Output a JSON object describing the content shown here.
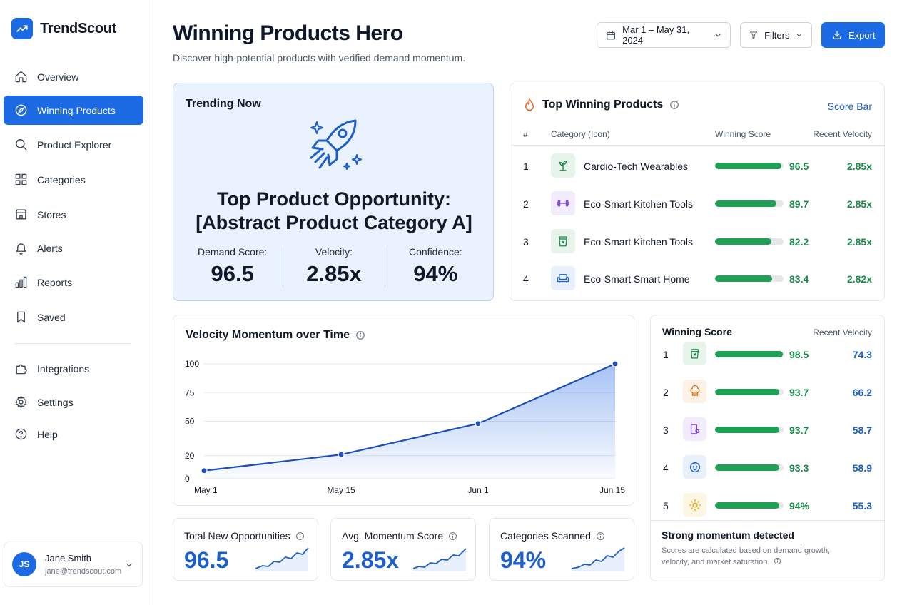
{
  "app": {
    "name": "TrendScout"
  },
  "nav": {
    "items": [
      {
        "label": "Overview",
        "icon": "home-icon"
      },
      {
        "label": "Winning Products",
        "icon": "compass-icon",
        "active": true
      },
      {
        "label": "Product Explorer",
        "icon": "search-icon"
      },
      {
        "label": "Categories",
        "icon": "grid-icon"
      },
      {
        "label": "Stores",
        "icon": "store-icon"
      },
      {
        "label": "Alerts",
        "icon": "bell-icon"
      },
      {
        "label": "Reports",
        "icon": "bar-chart-icon"
      },
      {
        "label": "Saved",
        "icon": "bookmark-icon"
      },
      {
        "label": "Integrations",
        "icon": "puzzle-icon"
      },
      {
        "label": "Settings",
        "icon": "gear-icon"
      },
      {
        "label": "Help",
        "icon": "help-icon"
      }
    ]
  },
  "user": {
    "initials": "JS",
    "name": "Jane Smith",
    "email": "jane@trendscout.com"
  },
  "header": {
    "title": "Winning Products Hero",
    "subtitle": "Discover high-potential products with verified demand momentum.",
    "date_range": "Mar 1 – May 31, 2024",
    "filters_label": "Filters",
    "export_label": "Export"
  },
  "hero": {
    "label": "Trending Now",
    "title_line1": "Top Product Opportunity:",
    "title_line2": "[Abstract Product Category A]",
    "stats": [
      {
        "label": "Demand Score:",
        "value": "96.5"
      },
      {
        "label": "Velocity:",
        "value": "2.85x"
      },
      {
        "label": "Confidence:",
        "value": "94%"
      }
    ]
  },
  "top_products": {
    "title": "Top Winning Products",
    "link": "Score Bar",
    "columns": [
      "#",
      "Category (Icon)",
      "Winning Score",
      "Recent Velocity"
    ],
    "rows": [
      {
        "rank": "1",
        "name": "Cardio-Tech Wearables",
        "score": "96.5",
        "score_value": 96.5,
        "velocity": "2.85x",
        "icon": "plant-icon",
        "icon_bg": "#e6f4ec",
        "icon_color": "#1a8a4a"
      },
      {
        "rank": "2",
        "name": "Eco-Smart Kitchen Tools",
        "score": "89.7",
        "score_value": 89.7,
        "velocity": "2.85x",
        "icon": "dumbbell-icon",
        "icon_bg": "#f1ebfb",
        "icon_color": "#7c3aed"
      },
      {
        "rank": "3",
        "name": "Eco-Smart Kitchen Tools",
        "score": "82.2",
        "score_value": 82.2,
        "velocity": "2.85x",
        "icon": "cup-icon",
        "icon_bg": "#e6f4ec",
        "icon_color": "#1a8a4a"
      },
      {
        "rank": "4",
        "name": "Eco-Smart Smart Home",
        "score": "83.4",
        "score_value": 83.4,
        "velocity": "2.82x",
        "icon": "sofa-icon",
        "icon_bg": "#e8f0fc",
        "icon_color": "#1d5fc9"
      }
    ]
  },
  "velocity_chart": {
    "title": "Velocity Momentum over Time"
  },
  "chart_data": {
    "type": "area",
    "title": "Velocity Momentum over Time",
    "x": [
      "May 1",
      "May 15",
      "Jun 1",
      "Jun 15"
    ],
    "yticks": [
      "0",
      "20",
      "50",
      "75",
      "100"
    ],
    "ylim": [
      0,
      100
    ],
    "series": [
      {
        "values": [
          7,
          21,
          48,
          100
        ]
      }
    ],
    "grid": true,
    "color": "#1d4fb8"
  },
  "kpis": [
    {
      "label": "Total New Opportunities",
      "value": "96.5"
    },
    {
      "label": "Avg. Momentum Score",
      "value": "2.85x"
    },
    {
      "label": "Categories Scanned",
      "value": "94%"
    }
  ],
  "ranking": {
    "col_score": "Winning Score",
    "col_velocity": "Recent Velocity",
    "rows": [
      {
        "rank": "1",
        "score": "98.5",
        "score_value": 98.5,
        "velocity": "74.3",
        "icon": "cup-icon",
        "icon_bg": "#e6f4ec",
        "icon_color": "#1a8a4a"
      },
      {
        "rank": "2",
        "score": "93.7",
        "score_value": 93.7,
        "velocity": "66.2",
        "icon": "chef-hat-icon",
        "icon_bg": "#fdf0e4",
        "icon_color": "#d9731a"
      },
      {
        "rank": "3",
        "score": "93.7",
        "score_value": 93.7,
        "velocity": "58.7",
        "icon": "device-icon",
        "icon_bg": "#f1ebfb",
        "icon_color": "#7c3aed"
      },
      {
        "rank": "4",
        "score": "93.3",
        "score_value": 93.3,
        "velocity": "58.9",
        "icon": "baby-icon",
        "icon_bg": "#e8f0fc",
        "icon_color": "#1d5fc9"
      },
      {
        "rank": "5",
        "score": "94%",
        "score_value": 94,
        "velocity": "55.3",
        "icon": "sun-icon",
        "icon_bg": "#fdf6e3",
        "icon_color": "#e0a211"
      }
    ],
    "footer_title": "Strong momentum detected",
    "footer_text": "Scores are calculated based on demand growth, velocity, and market saturation."
  },
  "colors": {
    "accent": "#1d6ae5",
    "success": "#1a8a4a",
    "bar": "#1fa055"
  }
}
